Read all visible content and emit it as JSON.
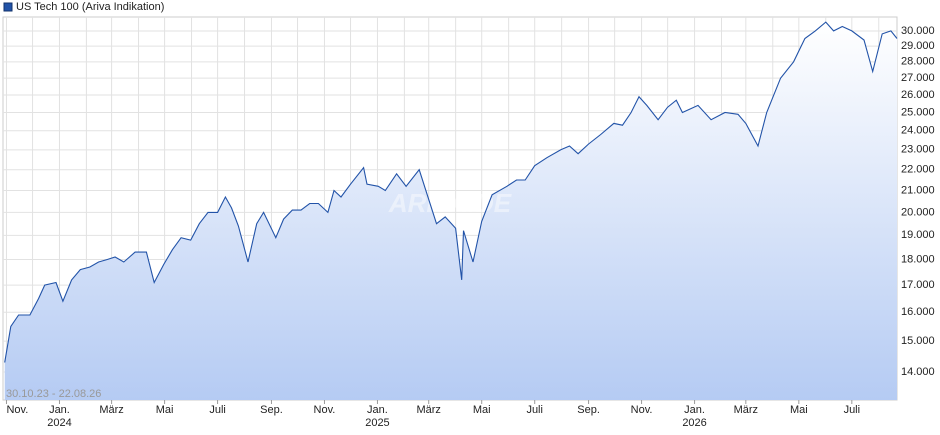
{
  "chart_data": {
    "type": "line",
    "legend": "US Tech 100 (Ariva Indikation)",
    "date_range": "30.10.23 - 22.08.26",
    "watermark": "ARIVA.DE",
    "color": "#2253a8",
    "log_scale": true,
    "grid": true,
    "yaxis_side": "right",
    "x": [
      "2023-10-30",
      "2023-11-06",
      "2023-11-15",
      "2023-11-28",
      "2023-12-08",
      "2023-12-15",
      "2023-12-28",
      "2024-01-05",
      "2024-01-15",
      "2024-01-25",
      "2024-02-05",
      "2024-02-15",
      "2024-02-25",
      "2024-03-05",
      "2024-03-15",
      "2024-03-28",
      "2024-04-10",
      "2024-04-19",
      "2024-04-30",
      "2024-05-10",
      "2024-05-20",
      "2024-05-31",
      "2024-06-10",
      "2024-06-20",
      "2024-07-01",
      "2024-07-10",
      "2024-07-17",
      "2024-07-25",
      "2024-08-05",
      "2024-08-15",
      "2024-08-23",
      "2024-09-06",
      "2024-09-15",
      "2024-09-25",
      "2024-10-05",
      "2024-10-15",
      "2024-10-25",
      "2024-11-05",
      "2024-11-12",
      "2024-11-20",
      "2024-12-01",
      "2024-12-16",
      "2024-12-20",
      "2025-01-02",
      "2025-01-10",
      "2025-01-23",
      "2025-02-03",
      "2025-02-18",
      "2025-03-10",
      "2025-03-20",
      "2025-04-01",
      "2025-04-08",
      "2025-04-10",
      "2025-04-21",
      "2025-05-01",
      "2025-05-13",
      "2025-05-30",
      "2025-06-10",
      "2025-06-20",
      "2025-07-01",
      "2025-07-15",
      "2025-07-31",
      "2025-08-10",
      "2025-08-20",
      "2025-09-01",
      "2025-09-15",
      "2025-09-30",
      "2025-10-10",
      "2025-10-20",
      "2025-10-29",
      "2025-11-07",
      "2025-11-20",
      "2025-12-01",
      "2025-12-11",
      "2025-12-18",
      "2026-01-05",
      "2026-01-20",
      "2026-02-05",
      "2026-02-20",
      "2026-03-01",
      "2026-03-15",
      "2026-03-25",
      "2026-04-10",
      "2026-04-25",
      "2026-05-08",
      "2026-05-20",
      "2026-06-01",
      "2026-06-10",
      "2026-06-20",
      "2026-07-01",
      "2026-07-15",
      "2026-07-25",
      "2026-08-05",
      "2026-08-15",
      "2026-08-22"
    ],
    "values": [
      14300,
      15500,
      15900,
      15900,
      16500,
      17000,
      17100,
      16400,
      17200,
      17600,
      17700,
      17900,
      18000,
      18100,
      17900,
      18300,
      18300,
      17100,
      17800,
      18400,
      18900,
      18800,
      19500,
      20000,
      20000,
      20700,
      20200,
      19400,
      17900,
      19500,
      20000,
      18900,
      19700,
      20100,
      20100,
      20400,
      20400,
      20000,
      21000,
      20700,
      21300,
      22100,
      21300,
      21200,
      21000,
      21800,
      21200,
      22000,
      19500,
      19800,
      19300,
      17200,
      19200,
      17900,
      19600,
      20800,
      21200,
      21500,
      21500,
      22200,
      22600,
      23000,
      23200,
      22800,
      23300,
      23800,
      24400,
      24300,
      25000,
      25900,
      25400,
      24600,
      25300,
      25700,
      25000,
      25400,
      24600,
      25000,
      24900,
      24400,
      23200,
      25000,
      27000,
      28000,
      29500,
      30000,
      30600,
      30000,
      30300,
      30000,
      29400,
      27400,
      29800,
      30000,
      29500
    ],
    "xlim": [
      "2023-10-28",
      "2026-08-22"
    ],
    "xticks": [
      {
        "value": "2023-11-01",
        "label": "Nov."
      },
      {
        "value": "2024-01-01",
        "label": "Jan.",
        "year": "2024"
      },
      {
        "value": "2024-03-01",
        "label": "März"
      },
      {
        "value": "2024-05-01",
        "label": "Mai"
      },
      {
        "value": "2024-07-01",
        "label": "Juli"
      },
      {
        "value": "2024-09-01",
        "label": "Sep."
      },
      {
        "value": "2024-11-01",
        "label": "Nov."
      },
      {
        "value": "2025-01-01",
        "label": "Jan.",
        "year": "2025"
      },
      {
        "value": "2025-03-01",
        "label": "März"
      },
      {
        "value": "2025-05-01",
        "label": "Mai"
      },
      {
        "value": "2025-07-01",
        "label": "Juli"
      },
      {
        "value": "2025-09-01",
        "label": "Sep."
      },
      {
        "value": "2025-11-01",
        "label": "Nov."
      },
      {
        "value": "2026-01-01",
        "label": "Jan.",
        "year": "2026"
      },
      {
        "value": "2026-03-01",
        "label": "März"
      },
      {
        "value": "2026-05-01",
        "label": "Mai"
      },
      {
        "value": "2026-07-01",
        "label": "Juli"
      }
    ],
    "xminorticks": [
      "2023-12-01",
      "2024-02-01",
      "2024-04-01",
      "2024-06-01",
      "2024-08-01",
      "2024-10-01",
      "2024-12-01",
      "2025-02-01",
      "2025-04-01",
      "2025-06-01",
      "2025-08-01",
      "2025-10-01",
      "2025-12-01",
      "2026-02-01",
      "2026-04-01",
      "2026-06-01",
      "2026-08-01"
    ],
    "ylim": [
      13150,
      30950
    ],
    "yticks": [
      {
        "value": 14000,
        "label": "14.000"
      },
      {
        "value": 15000,
        "label": "15.000"
      },
      {
        "value": 16000,
        "label": "16.000"
      },
      {
        "value": 17000,
        "label": "17.000"
      },
      {
        "value": 18000,
        "label": "18.000"
      },
      {
        "value": 19000,
        "label": "19.000"
      },
      {
        "value": 20000,
        "label": "20.000"
      },
      {
        "value": 21000,
        "label": "21.000"
      },
      {
        "value": 22000,
        "label": "22.000"
      },
      {
        "value": 23000,
        "label": "23.000"
      },
      {
        "value": 24000,
        "label": "24.000"
      },
      {
        "value": 25000,
        "label": "25.000"
      },
      {
        "value": 26000,
        "label": "26.000"
      },
      {
        "value": 27000,
        "label": "27.000"
      },
      {
        "value": 28000,
        "label": "28.000"
      },
      {
        "value": 29000,
        "label": "29.000"
      },
      {
        "value": 30000,
        "label": "30.000"
      }
    ]
  }
}
